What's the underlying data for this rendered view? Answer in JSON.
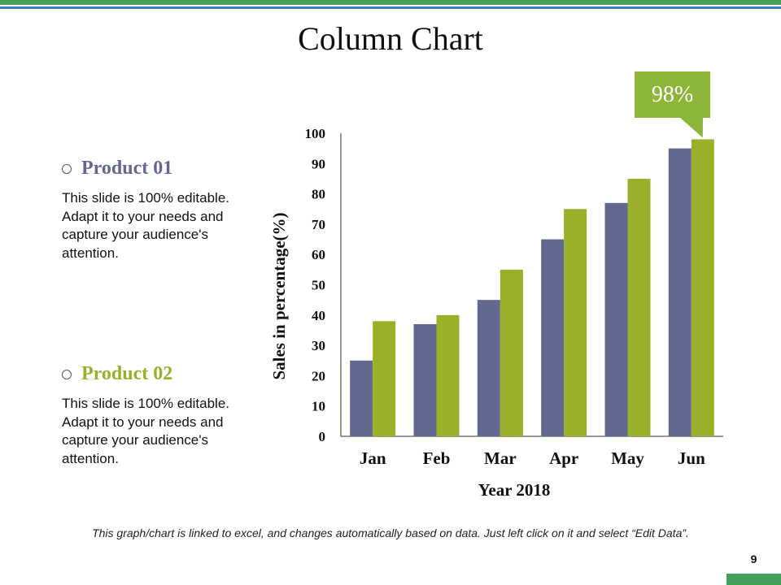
{
  "title": "Column Chart",
  "products": [
    {
      "label": "Product 01",
      "description": "This slide is 100% editable. Adapt it to your needs and capture your audience's attention."
    },
    {
      "label": "Product 02",
      "description": "This slide is 100% editable. Adapt it to your needs and capture your audience's attention."
    }
  ],
  "footnote": "This graph/chart is linked to excel, and changes automatically based on data. Just left click on it and select “Edit Data”.",
  "page_number": "9",
  "colors": {
    "product_01": "#636890",
    "product_02": "#9bb02a",
    "callout": "#8db53a",
    "top_bar": "#44a05a",
    "top_line": "#3a7fc0"
  },
  "chart_data": {
    "type": "bar",
    "title": "Column Chart",
    "categories": [
      "Jan",
      "Feb",
      "Mar",
      "Apr",
      "May",
      "Jun"
    ],
    "series": [
      {
        "name": "Product 01",
        "values": [
          25,
          37,
          45,
          65,
          77,
          95
        ]
      },
      {
        "name": "Product 02",
        "values": [
          38,
          40,
          55,
          75,
          85,
          98
        ]
      }
    ],
    "xlabel": "Year 2018",
    "ylabel": "Sales in percentage(%)",
    "ylim": [
      0,
      100
    ],
    "yticks": [
      0,
      10,
      20,
      30,
      40,
      50,
      60,
      70,
      80,
      90,
      100
    ],
    "grid": false,
    "annotation": {
      "text": "98%",
      "series": 1,
      "category": "Jun"
    }
  }
}
